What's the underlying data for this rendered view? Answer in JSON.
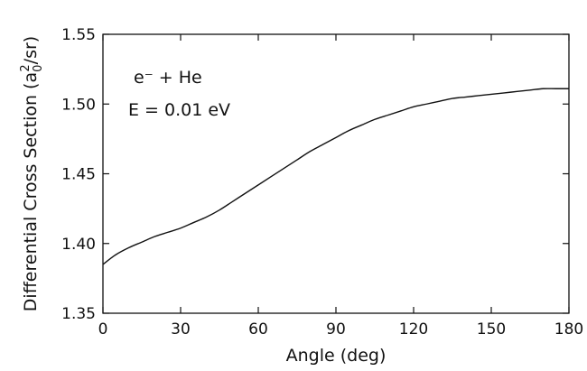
{
  "chart_data": {
    "type": "line",
    "xlabel": "Angle (deg)",
    "ylabel": {
      "prefix": "Differential Cross Section (a",
      "sub": "0",
      "sup": "2",
      "suffix": "/sr)"
    },
    "xlim": [
      0,
      180
    ],
    "ylim": [
      1.35,
      1.55
    ],
    "x_ticks": [
      0,
      30,
      60,
      90,
      120,
      150,
      180
    ],
    "y_ticks": [
      1.35,
      1.4,
      1.45,
      1.5,
      1.55
    ],
    "x_tick_labels": [
      "0",
      "30",
      "60",
      "90",
      "120",
      "150",
      "180"
    ],
    "y_tick_labels": [
      "1.35",
      "1.40",
      "1.45",
      "1.50",
      "1.55"
    ],
    "grid": false,
    "annotations": {
      "line1": "e⁻ + He",
      "line2": "E = 0.01 eV"
    },
    "series": [
      {
        "x": [
          0,
          5,
          10,
          15,
          20,
          25,
          30,
          35,
          40,
          45,
          50,
          55,
          60,
          65,
          70,
          75,
          80,
          85,
          90,
          95,
          100,
          105,
          110,
          115,
          120,
          125,
          130,
          135,
          140,
          145,
          150,
          155,
          160,
          165,
          170,
          175,
          180
        ],
        "y": [
          1.385,
          1.392,
          1.397,
          1.401,
          1.405,
          1.408,
          1.411,
          1.415,
          1.419,
          1.424,
          1.43,
          1.436,
          1.442,
          1.448,
          1.454,
          1.46,
          1.466,
          1.471,
          1.476,
          1.481,
          1.485,
          1.489,
          1.492,
          1.495,
          1.498,
          1.5,
          1.502,
          1.504,
          1.505,
          1.506,
          1.507,
          1.508,
          1.509,
          1.51,
          1.511,
          1.511,
          1.511
        ]
      }
    ]
  }
}
